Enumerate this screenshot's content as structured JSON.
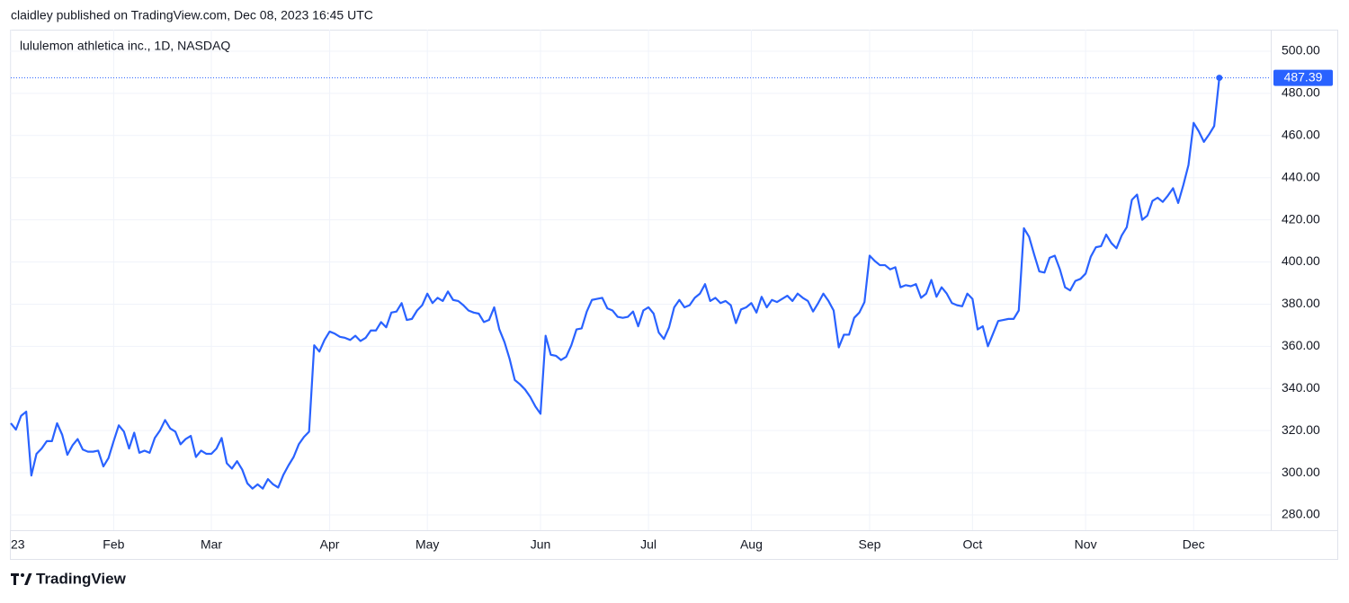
{
  "header": "claidley published on TradingView.com, Dec 08, 2023 16:45 UTC",
  "brand": "TradingView",
  "chart_data": {
    "type": "line",
    "title": "lululemon athletica inc., 1D, NASDAQ",
    "series": [
      {
        "color": "#2962ff",
        "values": [
          323.5,
          320.5,
          327,
          329,
          298.7,
          309,
          311.5,
          315,
          315,
          323.5,
          318,
          308.5,
          313,
          316,
          311,
          310,
          310,
          310.5,
          303,
          307,
          315,
          322.5,
          319.5,
          311.5,
          319,
          309.5,
          310.5,
          309.5,
          316.5,
          320,
          325,
          321,
          319.5,
          313.5,
          316,
          317.5,
          307.5,
          310.5,
          309,
          309,
          311.5,
          316.5,
          304.5,
          302,
          305.5,
          301.5,
          295,
          292.5,
          294.5,
          292.5,
          297,
          294.5,
          293,
          299,
          303.5,
          307.5,
          313.5,
          317,
          319.5,
          360.5,
          357.5,
          363,
          367,
          366,
          364.5,
          364,
          363,
          365,
          362.5,
          364,
          367.5,
          367.5,
          371.5,
          369,
          376,
          376.5,
          380.5,
          372.5,
          373,
          377,
          379.5,
          385,
          380.5,
          383,
          381.5,
          386,
          382,
          381.5,
          379.5,
          377,
          376,
          375.5,
          371.5,
          372.5,
          378.5,
          368,
          362,
          354,
          344,
          342,
          339.5,
          336,
          331.5,
          328,
          365,
          356,
          355.5,
          353.5,
          355,
          360.5,
          368,
          368.5,
          376.5,
          382,
          382.5,
          383,
          378,
          377,
          374,
          373.5,
          374,
          376.5,
          369.5,
          377,
          378.5,
          375.5,
          366.5,
          363.5,
          369,
          378.5,
          382,
          378.5,
          379.5,
          383,
          385,
          389.5,
          381.5,
          383,
          380.5,
          381.5,
          379.5,
          371,
          377.5,
          378.5,
          380.5,
          376,
          383.5,
          378.5,
          382,
          381,
          382.5,
          384,
          381.5,
          385,
          383,
          381.5,
          376.5,
          380.5,
          385,
          381.5,
          377,
          359.5,
          365.5,
          365.5,
          373.5,
          376,
          381,
          403,
          400.5,
          398.5,
          398.5,
          396.5,
          397.5,
          388,
          389,
          388.5,
          389.5,
          383,
          385,
          391.5,
          383.5,
          388,
          385,
          380.5,
          379.5,
          379,
          385,
          382.5,
          368,
          369.5,
          360,
          366,
          372,
          372.5,
          373,
          373,
          377,
          416,
          412,
          403.5,
          395.5,
          395,
          402,
          403,
          396.5,
          388,
          386.5,
          391,
          392,
          394.5,
          402.5,
          407,
          407.5,
          413,
          409,
          406.5,
          412.5,
          416.5,
          429.5,
          432,
          420,
          422,
          429,
          430.5,
          428.5,
          431.5,
          435,
          428,
          436.5,
          446,
          466,
          462,
          457,
          460.5,
          464.5,
          487.39
        ]
      }
    ],
    "xlim": [
      0,
      245
    ],
    "xticks": [
      {
        "value": 0,
        "label": "23"
      },
      {
        "value": 20,
        "label": "Feb"
      },
      {
        "value": 39,
        "label": "Mar"
      },
      {
        "value": 62,
        "label": "Apr"
      },
      {
        "value": 81,
        "label": "May"
      },
      {
        "value": 103,
        "label": "Jun"
      },
      {
        "value": 124,
        "label": "Jul"
      },
      {
        "value": 144,
        "label": "Aug"
      },
      {
        "value": 167,
        "label": "Sep"
      },
      {
        "value": 187,
        "label": "Oct"
      },
      {
        "value": 209,
        "label": "Nov"
      },
      {
        "value": 230,
        "label": "Dec"
      }
    ],
    "ylim": [
      272.75,
      510.23
    ],
    "yticks": [
      {
        "value": 280,
        "label": "280.00"
      },
      {
        "value": 300,
        "label": "300.00"
      },
      {
        "value": 320,
        "label": "320.00"
      },
      {
        "value": 340,
        "label": "340.00"
      },
      {
        "value": 360,
        "label": "360.00"
      },
      {
        "value": 380,
        "label": "380.00"
      },
      {
        "value": 400,
        "label": "400.00"
      },
      {
        "value": 420,
        "label": "420.00"
      },
      {
        "value": 440,
        "label": "440.00"
      },
      {
        "value": 460,
        "label": "460.00"
      },
      {
        "value": 480,
        "label": "480.00"
      },
      {
        "value": 500,
        "label": "500.00"
      }
    ],
    "grid": true
  }
}
